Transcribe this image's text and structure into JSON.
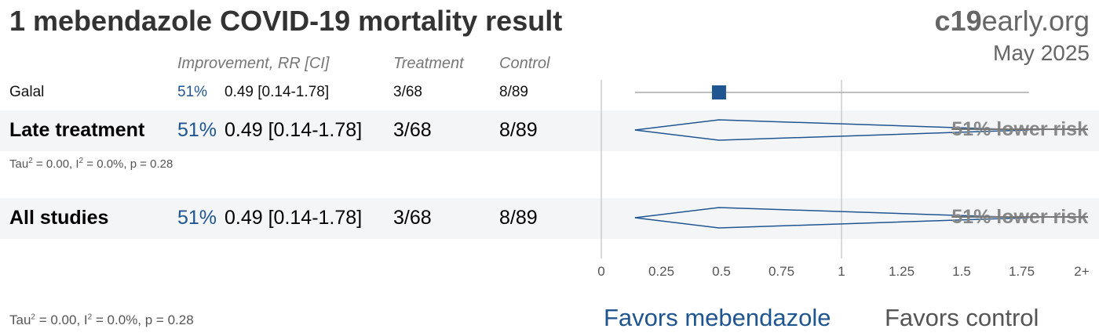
{
  "header": {
    "title": "1 mebendazole COVID-19 mortality result",
    "brand_bold": "c19",
    "brand_rest": "early.org",
    "date": "May 2025"
  },
  "columns": {
    "improvement": "Improvement, RR [CI]",
    "treatment": "Treatment",
    "control": "Control"
  },
  "rows": [
    {
      "name": "Galal",
      "improvement": "51%",
      "rr_ci": "0.49 [0.14-1.78]",
      "treatment": "3/68",
      "control": "8/89"
    },
    {
      "name": "Late treatment",
      "improvement": "51%",
      "rr_ci": "0.49 [0.14-1.78]",
      "treatment": "3/68",
      "control": "8/89",
      "stats": {
        "tau_label": "Tau",
        "tau_exp": "2",
        "tau_val": " = 0.00, I",
        "i_exp": "2",
        "rest": " = 0.0%, p = 0.28"
      },
      "risk_label": "51% lower risk"
    },
    {
      "name": "All studies",
      "improvement": "51%",
      "rr_ci": "0.49 [0.14-1.78]",
      "treatment": "3/68",
      "control": "8/89",
      "risk_label": "51% lower risk"
    }
  ],
  "footer_stats": {
    "tau_label": "Tau",
    "tau_exp": "2",
    "tau_val": " = 0.00, I",
    "i_exp": "2",
    "rest": " = 0.0%, p = 0.28"
  },
  "favors": {
    "left": "Favors mebendazole",
    "right": "Favors control"
  },
  "chart_data": {
    "type": "forest",
    "xlim": [
      0,
      2
    ],
    "x_ticks": [
      0,
      0.25,
      0.5,
      0.75,
      1,
      1.25,
      1.5,
      1.75,
      2
    ],
    "x_tick_labels": [
      "0",
      "0.25",
      "0.5",
      "0.75",
      "1",
      "1.25",
      "1.5",
      "1.75",
      "2+"
    ],
    "reference_line": 1,
    "studies": [
      {
        "name": "Galal",
        "rr": 0.49,
        "ci": [
          0.14,
          1.78
        ]
      }
    ],
    "pooled": [
      {
        "name": "Late treatment",
        "rr": 0.49,
        "ci": [
          0.14,
          1.78
        ]
      },
      {
        "name": "All studies",
        "rr": 0.49,
        "ci": [
          0.14,
          1.78
        ]
      }
    ],
    "colors": {
      "marker": "#1f5591",
      "axis": "#cccccc",
      "ci_line": "#aaaaaa",
      "label": "#888888"
    }
  }
}
